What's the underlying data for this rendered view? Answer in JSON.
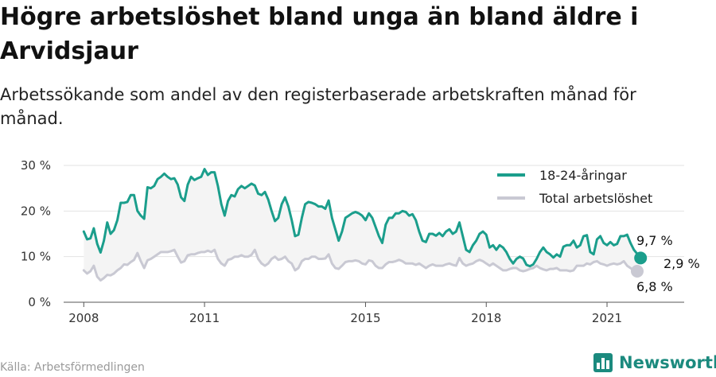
{
  "title": "Högre arbetslöshet bland unga än bland äldre i Arvidsjaur",
  "subtitle": "Arbetssökande som andel av den registerbaserade arbetskraften månad för månad.",
  "source": "Källa: Arbetsförmedlingen",
  "brand": "Newsworthy",
  "colors": {
    "youth": "#1b9e8c",
    "total": "#c9c9d3",
    "band": "#f4f4f4",
    "grid": "#e2e2e2",
    "brand": "#1b8a7e"
  },
  "chart_data": {
    "type": "line",
    "x_start": "2008-01",
    "x_frequency": "monthly",
    "xticks": [
      2008,
      2011,
      2015,
      2018,
      2021
    ],
    "xlim": [
      "2007-07",
      "2022-12"
    ],
    "yticks": [
      0,
      10,
      20,
      30
    ],
    "ytick_labels": [
      "0 %",
      "10 %",
      "20 %",
      "30 %"
    ],
    "ylim": [
      0,
      30
    ],
    "grid": true,
    "legend": "top-right",
    "shaded_between_series": true,
    "series": [
      {
        "name": "18-24-åringar",
        "color": "#1b9e8c",
        "end_value": 9.7,
        "end_label": "9,7 %",
        "values": [
          15.5,
          13.8,
          14.0,
          16.2,
          12.8,
          10.9,
          13.5,
          17.5,
          15.0,
          15.8,
          18.0,
          21.8,
          21.8,
          22.0,
          23.5,
          23.5,
          20.0,
          19.0,
          18.3,
          25.2,
          25.0,
          25.5,
          27.0,
          27.5,
          28.2,
          27.5,
          27.0,
          27.2,
          25.8,
          23.0,
          22.2,
          25.8,
          27.5,
          26.8,
          27.2,
          27.5,
          29.2,
          27.9,
          28.5,
          28.5,
          25.5,
          21.5,
          19.0,
          22.2,
          23.5,
          23.2,
          24.8,
          25.5,
          25.0,
          25.5,
          26.0,
          25.6,
          23.8,
          23.5,
          24.2,
          22.5,
          20.0,
          17.8,
          18.5,
          21.5,
          23.0,
          21.0,
          18.0,
          14.5,
          14.8,
          18.5,
          21.5,
          22.0,
          21.8,
          21.5,
          21.0,
          21.0,
          20.5,
          22.3,
          18.5,
          16.0,
          13.5,
          15.5,
          18.5,
          19.0,
          19.5,
          19.8,
          19.5,
          19.0,
          18.0,
          19.5,
          18.5,
          16.5,
          14.5,
          13.0,
          17.0,
          18.5,
          18.5,
          19.5,
          19.5,
          20.0,
          19.8,
          19.0,
          19.3,
          18.0,
          15.5,
          13.5,
          13.2,
          15.0,
          15.0,
          14.6,
          15.2,
          14.5,
          15.5,
          16.0,
          15.0,
          15.5,
          17.5,
          14.5,
          11.5,
          11.0,
          12.5,
          13.5,
          15.0,
          15.5,
          14.8,
          12.0,
          12.5,
          11.5,
          12.5,
          12.0,
          11.0,
          9.5,
          8.5,
          9.5,
          10.0,
          9.6,
          8.2,
          7.9,
          8.3,
          9.5,
          11.0,
          12.0,
          11.0,
          10.5,
          9.8,
          10.5,
          10.0,
          12.2,
          12.5,
          12.5,
          13.5,
          12.0,
          12.5,
          14.5,
          14.7,
          11.0,
          10.5,
          13.8,
          14.5,
          13.0,
          12.5,
          13.2,
          12.5,
          12.8,
          14.5,
          14.5,
          14.8,
          13.0,
          11.5,
          10.6,
          9.7
        ]
      },
      {
        "name": "Total arbetslöshet",
        "color": "#c9c9d3",
        "end_value": 6.8,
        "end_label": "6,8 %",
        "values": [
          7.0,
          6.3,
          6.8,
          8.0,
          5.6,
          4.8,
          5.3,
          6.0,
          5.9,
          6.3,
          7.0,
          7.5,
          8.3,
          8.2,
          8.8,
          9.3,
          10.8,
          9.0,
          7.5,
          9.2,
          9.5,
          10.0,
          10.5,
          11.0,
          11.0,
          11.0,
          11.2,
          11.5,
          10.0,
          8.7,
          9.0,
          10.3,
          10.5,
          10.5,
          10.8,
          11.0,
          11.0,
          11.3,
          11.0,
          11.5,
          9.5,
          8.5,
          8.0,
          9.3,
          9.5,
          10.0,
          10.0,
          10.3,
          10.0,
          10.0,
          10.4,
          11.5,
          9.5,
          8.5,
          8.0,
          8.5,
          9.5,
          10.0,
          9.3,
          9.5,
          10.0,
          9.0,
          8.5,
          7.0,
          7.5,
          9.0,
          9.5,
          9.5,
          10.0,
          10.0,
          9.5,
          9.5,
          9.6,
          10.5,
          8.5,
          7.5,
          7.3,
          8.0,
          8.8,
          9.0,
          9.0,
          9.2,
          9.0,
          8.5,
          8.3,
          9.2,
          9.0,
          8.0,
          7.5,
          7.5,
          8.3,
          8.8,
          8.8,
          9.0,
          9.3,
          9.0,
          8.5,
          8.5,
          8.5,
          8.2,
          8.5,
          8.0,
          7.5,
          8.0,
          8.3,
          8.0,
          8.0,
          8.0,
          8.3,
          8.5,
          8.2,
          8.0,
          9.7,
          8.5,
          8.0,
          8.3,
          8.5,
          9.0,
          9.3,
          9.0,
          8.5,
          8.0,
          8.5,
          8.0,
          7.5,
          7.0,
          7.0,
          7.3,
          7.5,
          7.5,
          7.0,
          6.8,
          7.0,
          7.3,
          7.5,
          8.0,
          7.5,
          7.2,
          7.0,
          7.3,
          7.3,
          7.5,
          7.0,
          7.0,
          7.0,
          6.8,
          7.0,
          8.0,
          8.0,
          8.0,
          8.5,
          8.3,
          8.8,
          9.0,
          8.5,
          8.3,
          8.0,
          8.3,
          8.5,
          8.3,
          8.5,
          9.0,
          8.0,
          7.5,
          7.0,
          6.8
        ]
      }
    ],
    "annotations": [
      {
        "text": "2,9 %",
        "between": [
          "18-24-åringar",
          "Total arbetslöshet"
        ]
      }
    ]
  }
}
